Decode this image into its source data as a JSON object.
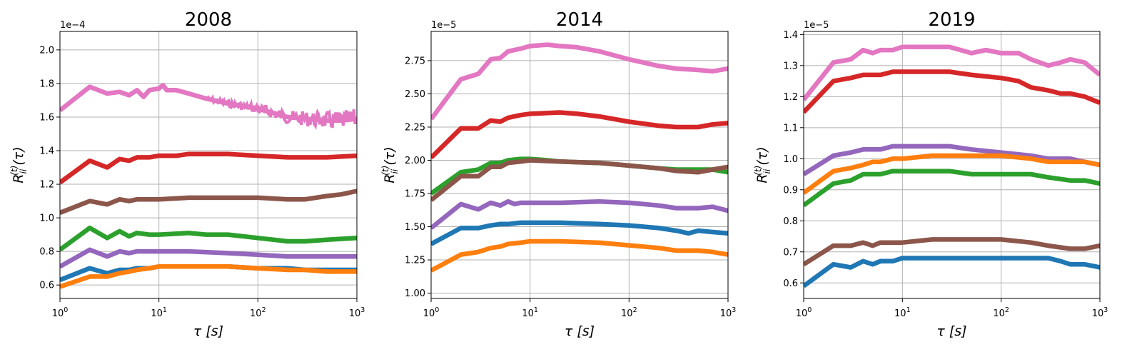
{
  "chart_data": [
    {
      "type": "line",
      "title": "2008",
      "xlabel": "τ [s]",
      "ylabel": "R_ii^(t)(τ)",
      "y_exponent_label": "1e−4",
      "x_scale": "log",
      "xlim": [
        1,
        1000
      ],
      "ylim": [
        0.52,
        2.11
      ],
      "x_ticks": [
        1,
        10,
        100,
        1000
      ],
      "x_tick_labels": [
        "10^0",
        "10^1",
        "10^2",
        "10^3"
      ],
      "y_ticks": [
        0.6,
        0.8,
        1.0,
        1.2,
        1.4,
        1.6,
        1.8,
        2.0
      ],
      "y_tick_labels": [
        "0.6",
        "0.8",
        "1.0",
        "1.2",
        "1.4",
        "1.6",
        "1.8",
        "2.0"
      ],
      "grid": true,
      "series": [
        {
          "color": "#e377c2",
          "x": [
            1,
            2,
            3,
            4,
            5,
            6,
            7,
            8,
            10,
            11,
            12,
            15,
            20,
            30,
            50,
            100,
            200,
            300,
            500,
            700,
            1000
          ],
          "y": [
            1.64,
            1.78,
            1.74,
            1.75,
            1.73,
            1.76,
            1.72,
            1.76,
            1.77,
            1.79,
            1.76,
            1.76,
            1.74,
            1.71,
            1.68,
            1.65,
            1.6,
            1.59,
            1.58,
            1.58,
            1.59
          ],
          "noisy_from": 30
        },
        {
          "color": "#d62728",
          "x": [
            1,
            2,
            3,
            4,
            5,
            6,
            8,
            10,
            15,
            20,
            30,
            50,
            100,
            200,
            300,
            500,
            1000
          ],
          "y": [
            1.21,
            1.34,
            1.3,
            1.35,
            1.34,
            1.36,
            1.36,
            1.37,
            1.37,
            1.38,
            1.38,
            1.38,
            1.37,
            1.36,
            1.36,
            1.36,
            1.37
          ]
        },
        {
          "color": "#8c564b",
          "x": [
            1,
            2,
            3,
            4,
            5,
            6,
            8,
            10,
            20,
            50,
            100,
            200,
            300,
            500,
            700,
            1000
          ],
          "y": [
            1.03,
            1.1,
            1.08,
            1.11,
            1.1,
            1.11,
            1.11,
            1.11,
            1.12,
            1.12,
            1.12,
            1.11,
            1.11,
            1.13,
            1.14,
            1.16
          ]
        },
        {
          "color": "#2ca02c",
          "x": [
            1,
            2,
            3,
            4,
            5,
            6,
            8,
            10,
            20,
            30,
            50,
            100,
            200,
            300,
            500,
            1000
          ],
          "y": [
            0.81,
            0.94,
            0.88,
            0.92,
            0.89,
            0.91,
            0.9,
            0.9,
            0.91,
            0.9,
            0.9,
            0.88,
            0.86,
            0.86,
            0.87,
            0.88
          ]
        },
        {
          "color": "#9467bd",
          "x": [
            1,
            2,
            3,
            4,
            5,
            6,
            8,
            10,
            20,
            50,
            100,
            200,
            300,
            500,
            1000
          ],
          "y": [
            0.71,
            0.81,
            0.77,
            0.8,
            0.79,
            0.8,
            0.8,
            0.8,
            0.8,
            0.79,
            0.78,
            0.77,
            0.77,
            0.77,
            0.77
          ]
        },
        {
          "color": "#1f77b4",
          "x": [
            1,
            2,
            3,
            4,
            5,
            6,
            8,
            10,
            20,
            50,
            100,
            200,
            300,
            500,
            1000
          ],
          "y": [
            0.63,
            0.7,
            0.67,
            0.69,
            0.69,
            0.7,
            0.7,
            0.71,
            0.71,
            0.71,
            0.7,
            0.7,
            0.69,
            0.69,
            0.69
          ]
        },
        {
          "color": "#ff7f0e",
          "x": [
            1,
            2,
            3,
            4,
            5,
            6,
            8,
            10,
            20,
            50,
            100,
            200,
            300,
            500,
            1000
          ],
          "y": [
            0.59,
            0.65,
            0.65,
            0.67,
            0.68,
            0.69,
            0.7,
            0.71,
            0.71,
            0.71,
            0.7,
            0.69,
            0.69,
            0.68,
            0.68
          ]
        }
      ]
    },
    {
      "type": "line",
      "title": "2014",
      "xlabel": "τ [s]",
      "ylabel": "R_ii^(t)(τ)",
      "y_exponent_label": "1e−5",
      "x_scale": "log",
      "xlim": [
        1,
        1000
      ],
      "ylim": [
        0.96,
        2.97
      ],
      "x_ticks": [
        1,
        10,
        100,
        1000
      ],
      "x_tick_labels": [
        "10^0",
        "10^1",
        "10^2",
        "10^3"
      ],
      "y_ticks": [
        1.0,
        1.25,
        1.5,
        1.75,
        2.0,
        2.25,
        2.5,
        2.75
      ],
      "y_tick_labels": [
        "1.00",
        "1.25",
        "1.50",
        "1.75",
        "2.00",
        "2.25",
        "2.50",
        "2.75"
      ],
      "grid": true,
      "series": [
        {
          "color": "#e377c2",
          "x": [
            1,
            2,
            3,
            4,
            5,
            6,
            8,
            10,
            15,
            20,
            30,
            50,
            100,
            200,
            300,
            500,
            700,
            1000
          ],
          "y": [
            2.31,
            2.61,
            2.65,
            2.76,
            2.77,
            2.82,
            2.84,
            2.86,
            2.87,
            2.86,
            2.85,
            2.82,
            2.76,
            2.71,
            2.69,
            2.68,
            2.67,
            2.69
          ]
        },
        {
          "color": "#d62728",
          "x": [
            1,
            2,
            3,
            4,
            5,
            6,
            8,
            10,
            20,
            30,
            50,
            100,
            200,
            300,
            500,
            700,
            1000
          ],
          "y": [
            2.02,
            2.24,
            2.24,
            2.3,
            2.29,
            2.32,
            2.34,
            2.35,
            2.36,
            2.35,
            2.33,
            2.29,
            2.26,
            2.25,
            2.25,
            2.27,
            2.28
          ]
        },
        {
          "color": "#2ca02c",
          "x": [
            1,
            2,
            3,
            4,
            5,
            6,
            8,
            10,
            15,
            20,
            50,
            100,
            200,
            300,
            500,
            700,
            1000
          ],
          "y": [
            1.75,
            1.91,
            1.93,
            1.98,
            1.98,
            2.0,
            2.01,
            2.01,
            2.0,
            1.99,
            1.98,
            1.96,
            1.94,
            1.93,
            1.93,
            1.93,
            1.91
          ]
        },
        {
          "color": "#8c564b",
          "x": [
            1,
            2,
            3,
            4,
            5,
            6,
            8,
            10,
            20,
            50,
            100,
            200,
            300,
            500,
            700,
            1000
          ],
          "y": [
            1.7,
            1.88,
            1.88,
            1.95,
            1.95,
            1.98,
            1.99,
            2.0,
            1.99,
            1.98,
            1.96,
            1.94,
            1.92,
            1.91,
            1.93,
            1.95
          ]
        },
        {
          "color": "#9467bd",
          "x": [
            1,
            2,
            3,
            4,
            5,
            6,
            7,
            8,
            10,
            20,
            50,
            100,
            200,
            300,
            500,
            700,
            1000
          ],
          "y": [
            1.49,
            1.67,
            1.63,
            1.68,
            1.66,
            1.69,
            1.67,
            1.68,
            1.68,
            1.68,
            1.69,
            1.68,
            1.66,
            1.64,
            1.64,
            1.65,
            1.62
          ]
        },
        {
          "color": "#1f77b4",
          "x": [
            1,
            2,
            3,
            4,
            5,
            6,
            8,
            10,
            20,
            50,
            100,
            200,
            300,
            400,
            500,
            700,
            1000
          ],
          "y": [
            1.37,
            1.49,
            1.49,
            1.51,
            1.52,
            1.52,
            1.53,
            1.53,
            1.53,
            1.52,
            1.51,
            1.49,
            1.47,
            1.45,
            1.47,
            1.46,
            1.45
          ]
        },
        {
          "color": "#ff7f0e",
          "x": [
            1,
            2,
            3,
            4,
            5,
            6,
            8,
            10,
            20,
            50,
            100,
            200,
            300,
            500,
            700,
            1000
          ],
          "y": [
            1.17,
            1.29,
            1.31,
            1.34,
            1.35,
            1.37,
            1.38,
            1.39,
            1.39,
            1.38,
            1.36,
            1.34,
            1.32,
            1.32,
            1.31,
            1.29
          ]
        }
      ]
    },
    {
      "type": "line",
      "title": "2019",
      "xlabel": "τ [s]",
      "ylabel": "R_ii^(t)(τ)",
      "y_exponent_label": "1e−5",
      "x_scale": "log",
      "xlim": [
        1,
        1000
      ],
      "ylim": [
        0.55,
        1.41
      ],
      "x_ticks": [
        1,
        10,
        100,
        1000
      ],
      "x_tick_labels": [
        "10^0",
        "10^1",
        "10^2",
        "10^3"
      ],
      "y_ticks": [
        0.6,
        0.7,
        0.8,
        0.9,
        1.0,
        1.1,
        1.2,
        1.3,
        1.4
      ],
      "y_tick_labels": [
        "0.6",
        "0.7",
        "0.8",
        "0.9",
        "1.0",
        "1.1",
        "1.2",
        "1.3",
        "1.4"
      ],
      "grid": true,
      "series": [
        {
          "color": "#e377c2",
          "x": [
            1,
            2,
            3,
            4,
            5,
            6,
            8,
            10,
            20,
            30,
            50,
            70,
            100,
            150,
            200,
            300,
            400,
            500,
            700,
            1000
          ],
          "y": [
            1.19,
            1.31,
            1.32,
            1.35,
            1.34,
            1.35,
            1.35,
            1.36,
            1.36,
            1.36,
            1.34,
            1.35,
            1.34,
            1.34,
            1.32,
            1.3,
            1.31,
            1.32,
            1.31,
            1.27
          ]
        },
        {
          "color": "#d62728",
          "x": [
            1,
            2,
            3,
            4,
            5,
            6,
            8,
            10,
            20,
            30,
            50,
            100,
            150,
            200,
            300,
            400,
            500,
            700,
            1000
          ],
          "y": [
            1.15,
            1.25,
            1.26,
            1.27,
            1.27,
            1.27,
            1.28,
            1.28,
            1.28,
            1.28,
            1.27,
            1.26,
            1.25,
            1.23,
            1.22,
            1.21,
            1.21,
            1.2,
            1.18
          ]
        },
        {
          "color": "#9467bd",
          "x": [
            1,
            2,
            3,
            4,
            5,
            6,
            8,
            10,
            20,
            30,
            50,
            100,
            200,
            300,
            500,
            700,
            1000
          ],
          "y": [
            0.95,
            1.01,
            1.02,
            1.03,
            1.03,
            1.03,
            1.04,
            1.04,
            1.04,
            1.04,
            1.03,
            1.02,
            1.01,
            1.0,
            1.0,
            0.99,
            0.98
          ]
        },
        {
          "color": "#ff7f0e",
          "x": [
            1,
            2,
            3,
            4,
            5,
            6,
            8,
            10,
            20,
            30,
            50,
            100,
            200,
            300,
            500,
            700,
            1000
          ],
          "y": [
            0.89,
            0.96,
            0.97,
            0.98,
            0.99,
            0.99,
            1.0,
            1.0,
            1.01,
            1.01,
            1.01,
            1.01,
            1.0,
            0.99,
            0.99,
            0.99,
            0.98
          ]
        },
        {
          "color": "#2ca02c",
          "x": [
            1,
            2,
            3,
            4,
            5,
            6,
            8,
            10,
            20,
            30,
            50,
            100,
            200,
            300,
            500,
            700,
            1000
          ],
          "y": [
            0.85,
            0.92,
            0.93,
            0.95,
            0.95,
            0.95,
            0.96,
            0.96,
            0.96,
            0.96,
            0.95,
            0.95,
            0.95,
            0.94,
            0.93,
            0.93,
            0.92
          ]
        },
        {
          "color": "#8c564b",
          "x": [
            1,
            2,
            3,
            4,
            5,
            6,
            8,
            10,
            20,
            30,
            50,
            100,
            200,
            300,
            500,
            700,
            1000
          ],
          "y": [
            0.66,
            0.72,
            0.72,
            0.73,
            0.72,
            0.73,
            0.73,
            0.73,
            0.74,
            0.74,
            0.74,
            0.74,
            0.73,
            0.72,
            0.71,
            0.71,
            0.72
          ]
        },
        {
          "color": "#1f77b4",
          "x": [
            1,
            2,
            3,
            4,
            5,
            6,
            8,
            10,
            20,
            30,
            50,
            100,
            200,
            300,
            400,
            500,
            700,
            1000
          ],
          "y": [
            0.59,
            0.66,
            0.65,
            0.67,
            0.66,
            0.67,
            0.67,
            0.68,
            0.68,
            0.68,
            0.68,
            0.68,
            0.68,
            0.68,
            0.67,
            0.66,
            0.66,
            0.65
          ]
        }
      ]
    }
  ]
}
